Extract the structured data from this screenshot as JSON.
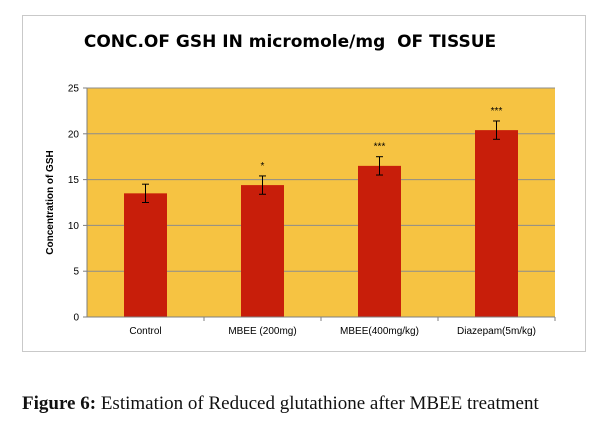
{
  "chart_data": {
    "type": "bar",
    "title": "CONC.OF GSH IN micromole/mg  OF TISSUE",
    "xlabel": "",
    "ylabel": "Concentration of GSH",
    "ylim": [
      0,
      25
    ],
    "yticks": [
      0,
      5,
      10,
      15,
      20,
      25
    ],
    "grid": true,
    "categories": [
      "Control",
      "MBEE (200mg)",
      "MBEE(400mg/kg)",
      "Diazepam(5m/kg)"
    ],
    "values": [
      13.5,
      14.4,
      16.5,
      20.4
    ],
    "errors": [
      1.0,
      1.0,
      1.0,
      1.0
    ],
    "significance": [
      "",
      "*",
      "***",
      "***"
    ],
    "colors": {
      "plot_background": "#F6C342",
      "bar": "#C81E0A",
      "gridline": "#8C8C8C",
      "axis": "#7F7F7F",
      "text": "#000000"
    }
  },
  "caption": {
    "label": "Figure 6:",
    "text": "Estimation of Reduced glutathione after MBEE treatment"
  }
}
